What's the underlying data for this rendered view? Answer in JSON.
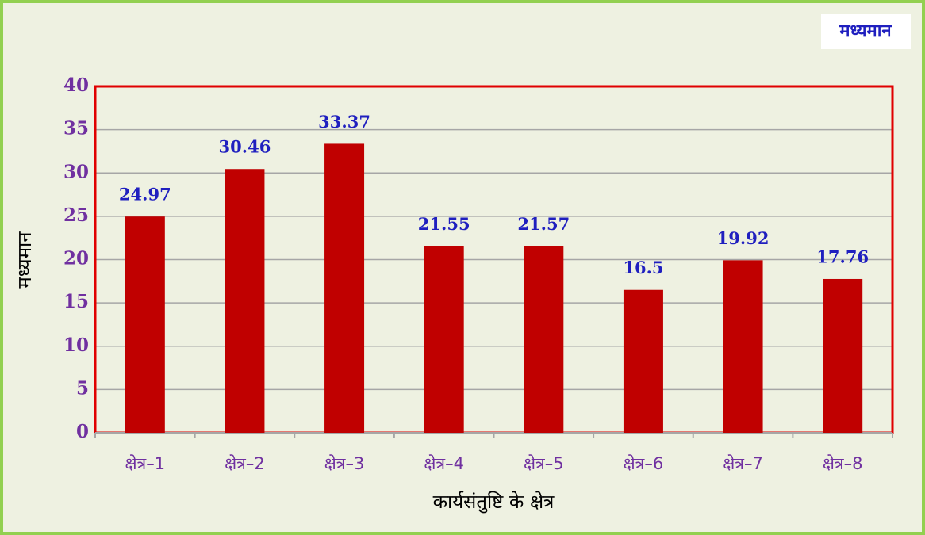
{
  "chart_data": {
    "type": "bar",
    "categories": [
      "क्षेत्र–1",
      "क्षेत्र–2",
      "क्षेत्र–3",
      "क्षेत्र–4",
      "क्षेत्र–5",
      "क्षेत्र–6",
      "क्षेत्र–7",
      "क्षेत्र–8"
    ],
    "series": [
      {
        "name": "मध्यमान",
        "color": "#c00000",
        "values": [
          24.97,
          30.46,
          33.37,
          21.55,
          21.57,
          16.5,
          19.92,
          17.76
        ]
      }
    ],
    "xlabel": "कार्यसंतुष्टि के क्षेत्र",
    "ylabel": "मध्यमान",
    "ylim": [
      0,
      40
    ],
    "yticks": [
      0,
      5,
      10,
      15,
      20,
      25,
      30,
      35,
      40
    ],
    "grid": true,
    "legend": "top-right"
  }
}
